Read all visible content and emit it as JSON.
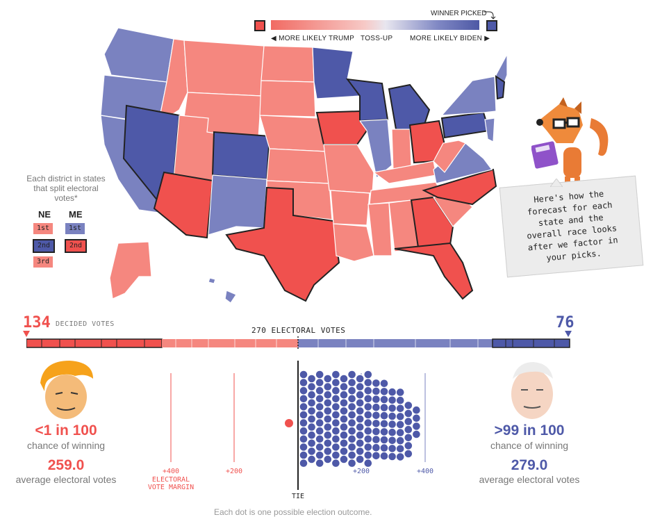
{
  "legend": {
    "winner_picked": "WINNER PICKED",
    "more_trump": "MORE LIKELY TRUMP",
    "tossup": "TOSS-UP",
    "more_biden": "MORE LIKELY BIDEN"
  },
  "district_key": {
    "title": "Each district in states that split electoral votes*",
    "ne": {
      "label": "NE",
      "items": [
        "1st",
        "2nd",
        "3rd"
      ]
    },
    "me": {
      "label": "ME",
      "items": [
        "1st",
        "2nd"
      ]
    }
  },
  "note": {
    "text": "Here's how the\nforecast for each\nstate and the\noverall race looks\nafter we factor in\nyour picks."
  },
  "vote_bar": {
    "trump_decided": "134",
    "decided_label": "DECIDED VOTES",
    "biden_decided": "76",
    "threshold_label": "270 ELECTORAL VOTES"
  },
  "trump": {
    "odds": "<1 in 100",
    "chance_label": "chance of winning",
    "avg": "259.0",
    "avg_label": "average electoral votes"
  },
  "biden": {
    "odds": ">99 in 100",
    "chance_label": "chance of winning",
    "avg": "279.0",
    "avg_label": "average electoral votes"
  },
  "axis": {
    "left_400": "+400",
    "margin_label": "ELECTORAL VOTE MARGIN",
    "left_200": "+200",
    "tie": "TIE",
    "right_200": "+200",
    "right_400": "+400"
  },
  "footnote": "Each dot is one possible election outcome.",
  "colors": {
    "trump": "#f0514e",
    "trump_light": "#f5877f",
    "biden": "#4e59a8",
    "biden_light": "#7c84c2",
    "dark_blue": "#47509f"
  }
}
